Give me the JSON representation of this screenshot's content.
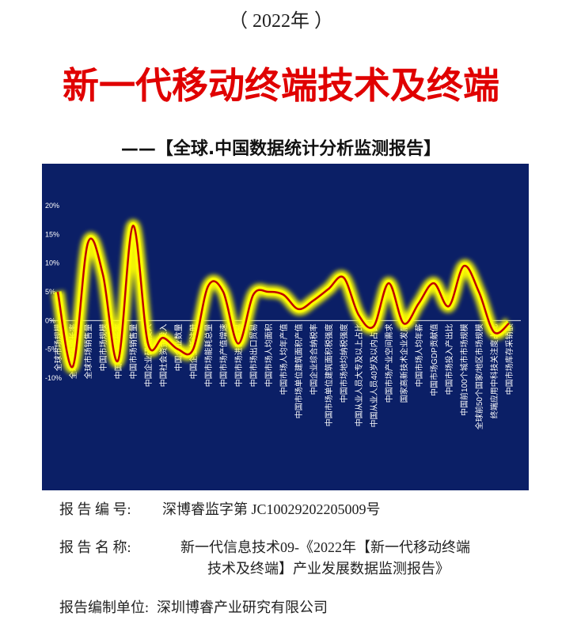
{
  "header": {
    "year": "（ 2022年 ）",
    "title": "新一代移动终端技术及终端",
    "subtitle": "——【全球.中国数据统计分析监测报告】"
  },
  "chart_data": {
    "type": "line",
    "categories": [
      "全球市场规模",
      "全球市场增长率",
      "全球市场销售量",
      "中国市场规模",
      "中国市场增长率",
      "中国市场销售量",
      "中国企业研发投入",
      "中国社会资金投入",
      "中国企业数量",
      "中国企业新注册",
      "中国市场能耗总量",
      "中国市场产值增速",
      "中国市场进口贸易",
      "中国市场出口贸易",
      "中国市场人均面积",
      "中国市场人均年产值",
      "中国市场单位建筑面积产值",
      "中国企业综合纳税率",
      "中国市场单位建筑面积税强度",
      "中国市场地均纳税强度",
      "中国从业人员大专及以上占比",
      "中国从业人员40岁及以内占比",
      "中国市场产业空间需求",
      "国家高新技术企业发展",
      "中国市场人均年薪",
      "中国市场GDP贡献值",
      "中国市场投入产出比",
      "中国前100个城市市场规模",
      "全球前50个国家/地区市场规模",
      "终端应用中科技关注度占比",
      "中国市场库存采销额"
    ],
    "series": [
      {
        "color": "#c00000",
        "glow_color": "#ffff00",
        "values": [
          5,
          -8,
          13.5,
          8,
          -7,
          16.5,
          -4,
          -3,
          -5,
          -5,
          6,
          5,
          -4,
          4.5,
          5,
          4.5,
          2,
          3.5,
          5.5,
          7.5,
          1,
          -1,
          6.5,
          -0.5,
          3,
          6.5,
          2.5,
          9.5,
          5,
          -2,
          -0.5
        ]
      }
    ],
    "ylim": [
      -10,
      20
    ],
    "yticks": [
      {
        "value": 20,
        "label": "20%"
      },
      {
        "value": 15,
        "label": "15%"
      },
      {
        "value": 10,
        "label": "10%"
      },
      {
        "value": 5,
        "label": "5%"
      },
      {
        "value": 0,
        "label": "0%"
      },
      {
        "value": -5,
        "label": "-5%"
      },
      {
        "value": -10,
        "label": "-10%"
      }
    ]
  },
  "info": {
    "number": {
      "label": "报 告 编 号:",
      "value": "深博睿监字第 JC10029202205009号"
    },
    "name": {
      "label": "报 告 名 称:",
      "lines": [
        "新一代信息技术09-《2022年【新一代移动终端",
        "技术及终端】产业发展数据监测报告》"
      ]
    },
    "unit": {
      "label": "报告编制单位:",
      "value": "深圳博睿产业研究有限公司"
    }
  }
}
